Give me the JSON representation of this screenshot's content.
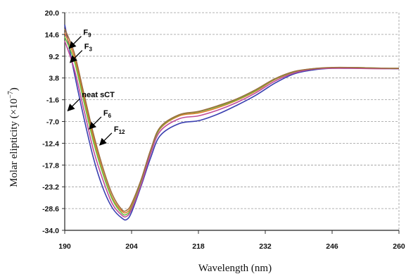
{
  "chart_data": {
    "type": "line",
    "xlabel": "Wavelength (nm)",
    "ylabel": "Molar elipticity (×10",
    "ylabel_exp": "−7",
    "ylabel_close": ")",
    "xlim": [
      190,
      260
    ],
    "ylim": [
      -34.0,
      20.0
    ],
    "x_ticks": [
      "190",
      "204",
      "218",
      "232",
      "246",
      "260"
    ],
    "y_ticks": [
      "20.0",
      "14.6",
      "9.2",
      "3.8",
      "-1.6",
      "-7.0",
      "-12.4",
      "-17.8",
      "-23.2",
      "-28.6",
      "-34.0"
    ],
    "grid": true,
    "annotations": [
      {
        "main": "F",
        "sub": "9",
        "x": 190.8,
        "y": 11.0
      },
      {
        "main": "F",
        "sub": "3",
        "x": 191.0,
        "y": 7.5
      },
      {
        "main": "neat sCT",
        "sub": "",
        "x": 190.5,
        "y": -4.5
      },
      {
        "main": "F",
        "sub": "6",
        "x": 195.0,
        "y": -9.0
      },
      {
        "main": "F",
        "sub": "12",
        "x": 197.2,
        "y": -13.0
      }
    ],
    "series": [
      {
        "color": "#3a3fb0",
        "x": [
          190,
          192,
          194,
          196,
          198,
          200,
          202,
          203,
          204,
          206,
          208,
          210,
          214,
          218,
          222,
          226,
          230,
          234,
          238,
          242,
          246,
          250,
          254,
          258,
          260
        ],
        "y": [
          17.0,
          5.0,
          -6.0,
          -16.0,
          -23.5,
          -28.5,
          -31.0,
          -31.3,
          -29.5,
          -23.0,
          -16.0,
          -10.5,
          -7.5,
          -6.8,
          -5.2,
          -3.0,
          -0.5,
          2.5,
          4.8,
          5.8,
          6.2,
          6.2,
          6.2,
          6.1,
          6.1
        ]
      },
      {
        "color": "#e07a2e",
        "x": [
          190,
          192,
          194,
          196,
          198,
          200,
          202,
          203,
          204,
          206,
          208,
          210,
          214,
          218,
          222,
          226,
          230,
          234,
          238,
          242,
          246,
          250,
          254,
          258,
          260
        ],
        "y": [
          15.0,
          9.0,
          -1.0,
          -11.0,
          -19.5,
          -26.0,
          -29.3,
          -29.5,
          -28.0,
          -22.0,
          -14.5,
          -8.8,
          -5.6,
          -4.9,
          -3.6,
          -1.8,
          0.5,
          3.4,
          5.2,
          6.0,
          6.3,
          6.3,
          6.2,
          6.2,
          6.2
        ]
      },
      {
        "color": "#6cbf3e",
        "x": [
          190,
          192,
          194,
          196,
          198,
          200,
          202,
          203,
          204,
          206,
          208,
          210,
          214,
          218,
          222,
          226,
          230,
          234,
          238,
          242,
          246,
          250,
          254,
          258,
          260
        ],
        "y": [
          14.0,
          8.0,
          -2.0,
          -12.0,
          -20.0,
          -26.4,
          -29.8,
          -30.0,
          -28.4,
          -22.2,
          -14.6,
          -8.6,
          -5.4,
          -4.6,
          -3.3,
          -1.6,
          0.7,
          3.5,
          5.3,
          6.1,
          6.3,
          6.4,
          6.3,
          6.2,
          6.2
        ]
      },
      {
        "color": "#c04c9a",
        "x": [
          190,
          192,
          194,
          196,
          198,
          200,
          202,
          203,
          204,
          206,
          208,
          210,
          214,
          218,
          222,
          226,
          230,
          234,
          238,
          242,
          246,
          250,
          254,
          258,
          260
        ],
        "y": [
          13.0,
          6.0,
          -4.0,
          -14.0,
          -21.5,
          -27.5,
          -30.3,
          -30.5,
          -28.8,
          -22.6,
          -15.0,
          -9.4,
          -6.3,
          -5.6,
          -4.2,
          -2.3,
          0.1,
          3.0,
          5.0,
          6.0,
          6.2,
          6.2,
          6.1,
          6.1,
          6.1
        ]
      },
      {
        "color": "#9c6d3e",
        "x": [
          190,
          192,
          194,
          196,
          198,
          200,
          202,
          203,
          204,
          206,
          208,
          210,
          214,
          218,
          222,
          226,
          230,
          234,
          238,
          242,
          246,
          250,
          254,
          258,
          260
        ],
        "y": [
          16.0,
          10.0,
          0.0,
          -10.0,
          -18.5,
          -25.2,
          -28.9,
          -29.0,
          -27.4,
          -21.4,
          -14.0,
          -8.4,
          -5.3,
          -4.5,
          -3.1,
          -1.4,
          0.9,
          3.6,
          5.4,
          6.1,
          6.4,
          6.4,
          6.3,
          6.2,
          6.2
        ]
      }
    ]
  }
}
